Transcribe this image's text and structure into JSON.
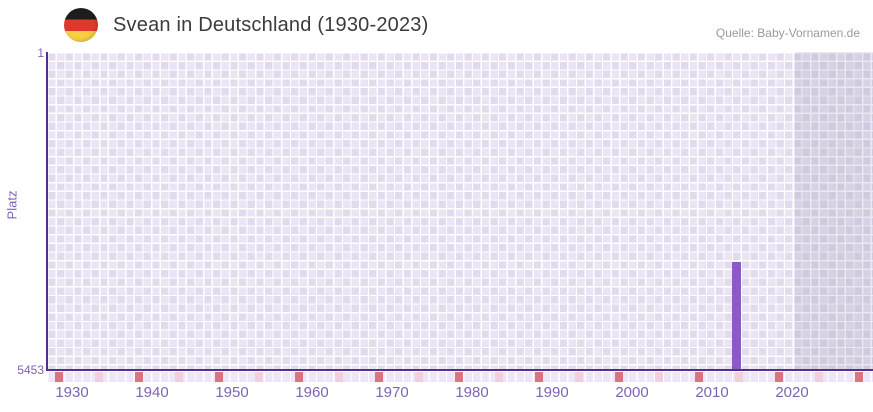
{
  "header": {
    "title": "Svean in Deutschland (1930-2023)",
    "flag_icon": "german-flag-icon",
    "source": "Quelle: Baby-Vornamen.de"
  },
  "colors": {
    "bar": "#8c59c6",
    "axis_line": "#532f8e",
    "tick_label": "#7e63b4",
    "major_tick_cell": "#e0717f",
    "minor_tick_cell": "#f2cfdc",
    "strip_cell": "#ece6f6",
    "grid_cell_light": "#eae4f5",
    "grid_cell_alt": "#e2dbee",
    "no_data_band_tint": "rgba(120,115,150,0.16)",
    "title_text": "#3b3b3b",
    "source_text": "#9a9a9a",
    "flag_black": "#1d1d1b",
    "flag_red": "#dd3a2e",
    "flag_gold": "#f8cf43"
  },
  "chart_data": {
    "type": "bar",
    "title": "Svean in Deutschland (1930-2023)",
    "source": "Quelle: Baby-Vornamen.de",
    "ylabel": "Platz",
    "y_axis": {
      "inverted": true,
      "best": 1,
      "worst": 5453,
      "tick_labels": [
        "1",
        "5453"
      ]
    },
    "x_axis": {
      "start_year": 1930,
      "end_year": 2023,
      "tick_labels": [
        "1930",
        "1940",
        "1950",
        "1960",
        "1970",
        "1980",
        "1990",
        "2000",
        "2010",
        "2020"
      ],
      "major_tick_years": [
        1930,
        1940,
        1950,
        1960,
        1970,
        1980,
        1990,
        2000,
        2010,
        2020,
        2030
      ],
      "minor_tick_years": [
        1935,
        1945,
        1955,
        1965,
        1975,
        1985,
        1995,
        2005,
        2015,
        2025
      ]
    },
    "grid": "checkerboard",
    "legend": "none",
    "series": [
      {
        "name": "Platz",
        "points": [
          {
            "year": 2013,
            "rank": 3600
          }
        ]
      }
    ],
    "no_data_region": {
      "from_year": 2022,
      "to_year": 2030
    }
  }
}
